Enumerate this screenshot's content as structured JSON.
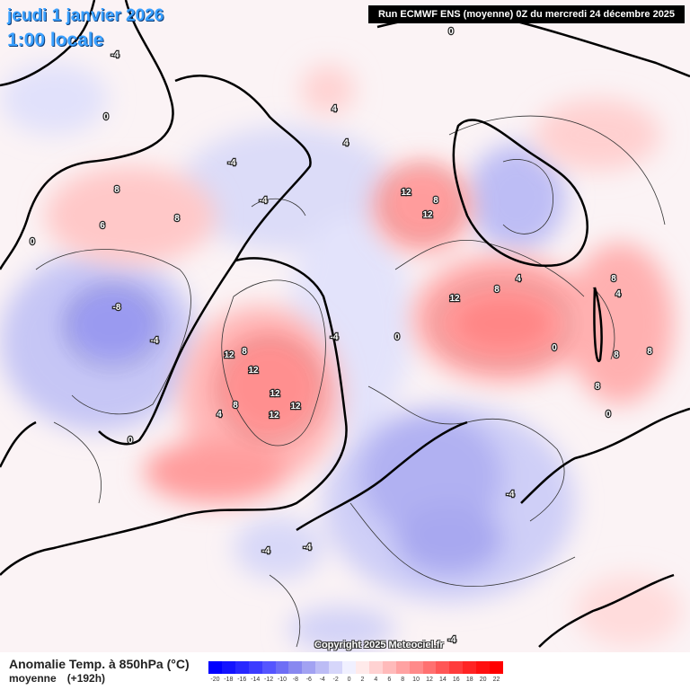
{
  "header": {
    "date": "jeudi 1 janvier 2026",
    "time": "1:00 locale",
    "run": "Run ECMWF ENS (moyenne) 0Z du mercredi 24 décembre 2025"
  },
  "copyright": "Copyright 2025 Meteociel.fr",
  "legend": {
    "title": "Anomalie Temp. à 850hPa (°C)",
    "subtitle": "moyenne",
    "horizon": "(+192h)",
    "scale": [
      {
        "value": "-20",
        "color": "#0000ff"
      },
      {
        "value": "-18",
        "color": "#1414ff"
      },
      {
        "value": "-16",
        "color": "#2828ff"
      },
      {
        "value": "-14",
        "color": "#3c3cff"
      },
      {
        "value": "-12",
        "color": "#5555ff"
      },
      {
        "value": "-10",
        "color": "#6e6ef5"
      },
      {
        "value": "-8",
        "color": "#8888f0"
      },
      {
        "value": "-6",
        "color": "#a2a2f2"
      },
      {
        "value": "-4",
        "color": "#bcbcf5"
      },
      {
        "value": "-2",
        "color": "#d6d6fa"
      },
      {
        "value": "0",
        "color": "#f0f0ff"
      },
      {
        "value": "2",
        "color": "#ffeaea"
      },
      {
        "value": "4",
        "color": "#ffd2d2"
      },
      {
        "value": "6",
        "color": "#ffbaba"
      },
      {
        "value": "8",
        "color": "#ffa2a2"
      },
      {
        "value": "10",
        "color": "#ff8a8a"
      },
      {
        "value": "12",
        "color": "#ff7070"
      },
      {
        "value": "14",
        "color": "#ff5656"
      },
      {
        "value": "16",
        "color": "#ff3c3c"
      },
      {
        "value": "18",
        "color": "#ff2424"
      },
      {
        "value": "20",
        "color": "#ff1010"
      },
      {
        "value": "22",
        "color": "#ff0000"
      }
    ]
  },
  "map_labels": [
    "0",
    "-4",
    "0",
    "-4",
    "4",
    "4",
    "8",
    "6",
    "8",
    "-8",
    "-4",
    "0",
    "4",
    "12",
    "8",
    "12",
    "12",
    "12",
    "12",
    "8",
    "-4",
    "12",
    "8",
    "12",
    "8",
    "12",
    "-4",
    "-4",
    "0",
    "4",
    "-4",
    "-4",
    "0",
    "8",
    "4",
    "8",
    "8",
    "8",
    "0",
    "-4",
    "0"
  ]
}
